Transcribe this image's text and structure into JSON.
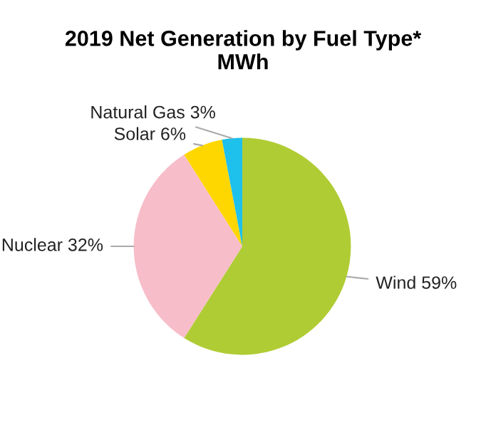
{
  "chart_data": {
    "type": "pie",
    "title": "2019 Net Generation by Fuel Type*\nMWh",
    "categories": [
      "Wind",
      "Nuclear",
      "Solar",
      "Natural Gas"
    ],
    "values": [
      59,
      32,
      6,
      3
    ],
    "value_labels": [
      "59%",
      "32%",
      "6%",
      "3%"
    ],
    "colors": [
      "#b0cc34",
      "#f7bdc9",
      "#ffd700",
      "#1ec0ec"
    ]
  }
}
